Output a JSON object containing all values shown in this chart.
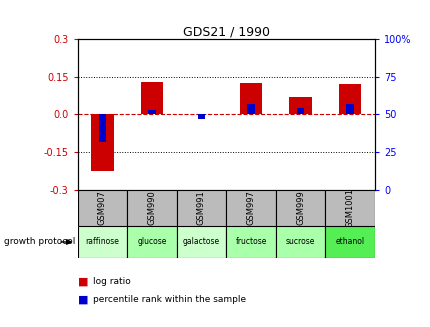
{
  "title": "GDS21 / 1990",
  "samples": [
    "GSM907",
    "GSM990",
    "GSM991",
    "GSM997",
    "GSM999",
    "GSM1001"
  ],
  "growth_protocol": [
    "raffinose",
    "glucose",
    "galactose",
    "fructose",
    "sucrose",
    "ethanol"
  ],
  "log_ratio": [
    -0.225,
    0.13,
    0.0,
    0.125,
    0.07,
    0.12
  ],
  "percentile_rank": [
    32,
    53,
    47,
    57,
    54,
    57
  ],
  "ylim_left": [
    -0.3,
    0.3
  ],
  "ylim_right": [
    0,
    100
  ],
  "yticks_left": [
    -0.3,
    -0.15,
    0.0,
    0.15,
    0.3
  ],
  "yticks_right": [
    0,
    25,
    50,
    75,
    100
  ],
  "bar_width": 0.45,
  "blue_bar_width": 0.15,
  "red_color": "#CC0000",
  "blue_color": "#0000CC",
  "grid_color": "#000000",
  "dashed_zero_color": "#CC0000",
  "bg_color": "#FFFFFF",
  "plot_bg": "#FFFFFF",
  "sample_bg": "#BBBBBB",
  "protocol_colors": [
    "#CCFFCC",
    "#AAFFAA",
    "#CCFFCC",
    "#AAFFAA",
    "#AAFFAA",
    "#55EE55"
  ],
  "legend_red": "log ratio",
  "legend_blue": "percentile rank within the sample",
  "growth_label": "growth protocol"
}
